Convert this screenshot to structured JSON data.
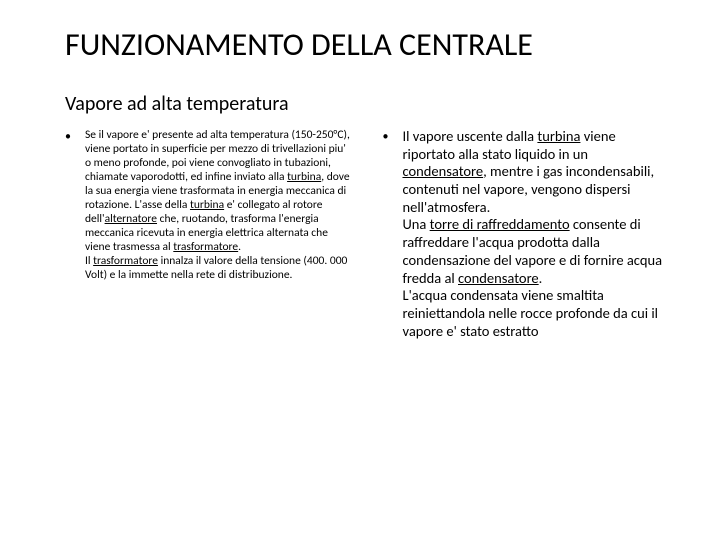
{
  "title": "FUNZIONAMENTO DELLA CENTRALE",
  "subtitle": "Vapore ad alta temperatura",
  "left": {
    "p1": "Se il vapore e' presente ad alta temperatura (150-250°C), viene portato in superficie per mezzo di trivellazioni piu' o meno profonde, poi viene convogliato in tubazioni, chiamate vaporodotti, ed infine inviato alla ",
    "turbina1": "turbina",
    "p2": ", dove la sua energia viene trasformata in energia meccanica di rotazione. L'asse della ",
    "turbina2": "turbina",
    "p3": " e' collegato al rotore dell'",
    "alternatore": "alternatore",
    "p4": " che, ruotando, trasforma l'energia meccanica ricevuta in energia elettrica alternata che viene trasmessa al ",
    "trasformatore1": "trasformatore",
    "p5": ".",
    "p6": "Il ",
    "trasformatore2": "trasformatore",
    "p7": " innalza il valore della tensione (400. 000 Volt) e la immette nella rete di distribuzione."
  },
  "right": {
    "p1": "Il vapore uscente dalla ",
    "turbina": "turbina",
    "p2": " viene riportato alla stato liquido in un ",
    "condensatore1": "condensatore",
    "p3": ", mentre i gas incondensabili, contenuti nel vapore, vengono dispersi nell'atmosfera.",
    "p4": "Una ",
    "torre": "torre di raffreddamento",
    "p5": " consente di raffreddare l'acqua prodotta dalla condensazione del vapore e di fornire acqua fredda al ",
    "condensatore2": "condensatore",
    "p6": ".",
    "p7": "L'acqua condensata viene smaltita reiniettandola nelle rocce profonde da cui il vapore e' stato estratto"
  }
}
